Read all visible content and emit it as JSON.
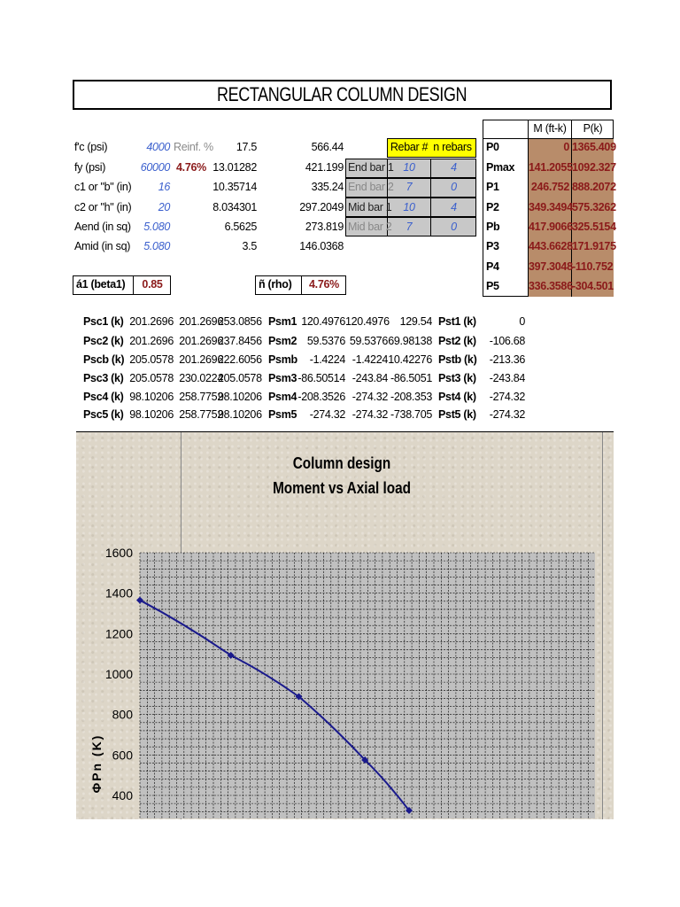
{
  "title": "RECTANGULAR COLUMN DESIGN",
  "inputs": {
    "fc_label": "f'c (psi)",
    "fc_value": "4000",
    "fy_label": "fy (psi)",
    "fy_value": "60000",
    "c1_label": "c1 or \"b\" (in)",
    "c1_value": "16",
    "c2_label": "c2 or \"h\" (in)",
    "c2_value": "20",
    "aend_label": "Aend (in sq)",
    "aend_value": "5.080",
    "amid_label": "Amid (in sq)",
    "amid_value": "5.080",
    "reinf_label": "Reinf. %",
    "reinf_value": "4.76%"
  },
  "col3": [
    "17.5",
    "13.01282",
    "10.35714",
    "8.034301",
    "6.5625",
    "3.5"
  ],
  "col4": [
    "566.44",
    "421.199",
    "335.24",
    "297.2049",
    "273.819",
    "146.0368"
  ],
  "rebar": {
    "header_num": "Rebar #",
    "header_n": "n rebars",
    "rows": [
      {
        "label": "End bar 1",
        "num": "10",
        "n": "4"
      },
      {
        "label": "End bar 2",
        "num": "7",
        "n": "0"
      },
      {
        "label": "Mid bar 1",
        "num": "10",
        "n": "4"
      },
      {
        "label": "Mid bar 2",
        "num": "7",
        "n": "0"
      }
    ]
  },
  "beta1": {
    "label": "á1 (beta1)",
    "value": "0.85"
  },
  "rho": {
    "label": "ñ (rho)",
    "value": "4.76%"
  },
  "pm_table": {
    "h_m": "M (ft-k)",
    "h_p": "P(k)",
    "rows": [
      {
        "label": "P0",
        "m": "0",
        "p": "1365.409"
      },
      {
        "label": "Pmax",
        "m": "141.2055",
        "p": "1092.327"
      },
      {
        "label": "P1",
        "m": "246.752",
        "p": "888.2072"
      },
      {
        "label": "P2",
        "m": "349.3494",
        "p": "575.3262"
      },
      {
        "label": "Pb",
        "m": "417.9066",
        "p": "325.5154"
      },
      {
        "label": "P3",
        "m": "443.6628",
        "p": "171.9175"
      },
      {
        "label": "P4",
        "m": "397.3048",
        "p": "-110.752"
      },
      {
        "label": "P5",
        "m": "336.3586",
        "p": "-304.501"
      }
    ]
  },
  "forces": [
    {
      "a": "Psc1 (k)",
      "a1": "201.2696",
      "a2": "201.2696",
      "a3": "253.0856",
      "b": "Psm1",
      "b1": "120.4976",
      "b2": "120.4976",
      "b3": "129.54",
      "c": "Pst1 (k)",
      "c1": "0"
    },
    {
      "a": "Psc2 (k)",
      "a1": "201.2696",
      "a2": "201.2696",
      "a3": "237.8456",
      "b": "Psm2",
      "b1": "59.5376",
      "b2": "59.5376",
      "b3": "69.98138",
      "c": "Pst2 (k)",
      "c1": "-106.68"
    },
    {
      "a": "Pscb (k)",
      "a1": "205.0578",
      "a2": "201.2696",
      "a3": "222.6056",
      "b": "Psmb",
      "b1": "-1.4224",
      "b2": "-1.4224",
      "b3": "10.42276",
      "c": "Pstb (k)",
      "c1": "-213.36"
    },
    {
      "a": "Psc3 (k)",
      "a1": "205.0578",
      "a2": "230.0224",
      "a3": "205.0578",
      "b": "Psm3",
      "b1": "-86.50514",
      "b2": "-243.84",
      "b3": "-86.5051",
      "c": "Pst3 (k)",
      "c1": "-243.84"
    },
    {
      "a": "Psc4 (k)",
      "a1": "98.10206",
      "a2": "258.7752",
      "a3": "98.10206",
      "b": "Psm4",
      "b1": "-208.3526",
      "b2": "-274.32",
      "b3": "-208.353",
      "c": "Pst4 (k)",
      "c1": "-274.32"
    },
    {
      "a": "Psc5 (k)",
      "a1": "98.10206",
      "a2": "258.7752",
      "a3": "98.10206",
      "b": "Psm5",
      "b1": "-274.32",
      "b2": "-274.32",
      "b3": "-738.705",
      "c": "Pst5 (k)",
      "c1": "-274.32"
    }
  ],
  "chart_data": {
    "type": "line",
    "title": "Column design",
    "subtitle": "Moment vs Axial load",
    "ylabel": "ΦPn (K)",
    "ylim_visible": [
      300,
      1600
    ],
    "yticks": [
      "1600",
      "1400",
      "1200",
      "1000",
      "800",
      "600",
      "400"
    ],
    "yticks_values": [
      1600,
      1400,
      1200,
      1000,
      800,
      600,
      400
    ],
    "x": [
      0,
      141.2055,
      246.752,
      349.3494,
      417.9066
    ],
    "y": [
      1365.409,
      1092.327,
      888.2072,
      575.3262,
      325.5154
    ],
    "series_color": "#1a1a8c"
  }
}
